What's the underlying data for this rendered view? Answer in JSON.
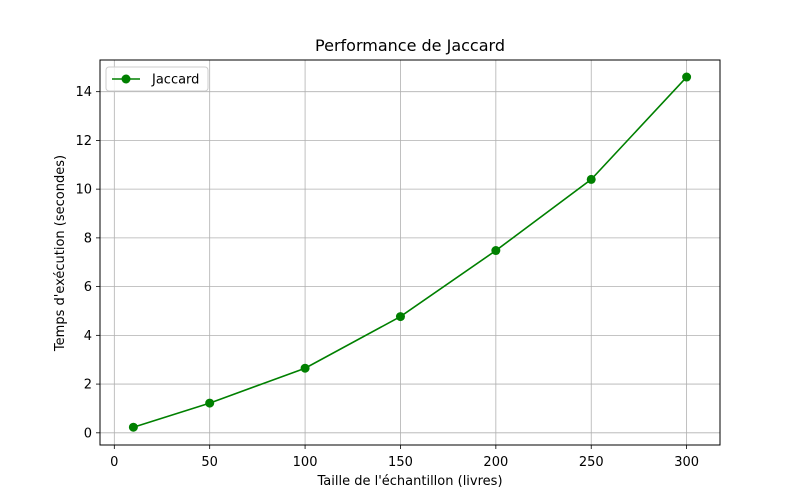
{
  "chart_data": {
    "type": "line",
    "title": "Performance de Jaccard",
    "xlabel": "Taille de l'échantillon (livres)",
    "ylabel": "Temps d'exécution (secondes)",
    "xlim": [
      -7.5,
      317.5
    ],
    "ylim": [
      -0.5,
      15.3
    ],
    "xticks": [
      0,
      50,
      100,
      150,
      200,
      250,
      300
    ],
    "yticks": [
      0,
      2,
      4,
      6,
      8,
      10,
      12,
      14
    ],
    "grid": true,
    "legend_position": "top-left",
    "series": [
      {
        "name": "Jaccard",
        "color": "#008000",
        "marker": "circle",
        "x": [
          10,
          50,
          100,
          150,
          200,
          250,
          300
        ],
        "y": [
          0.23,
          1.22,
          2.65,
          4.77,
          7.48,
          10.4,
          14.6
        ]
      }
    ]
  }
}
